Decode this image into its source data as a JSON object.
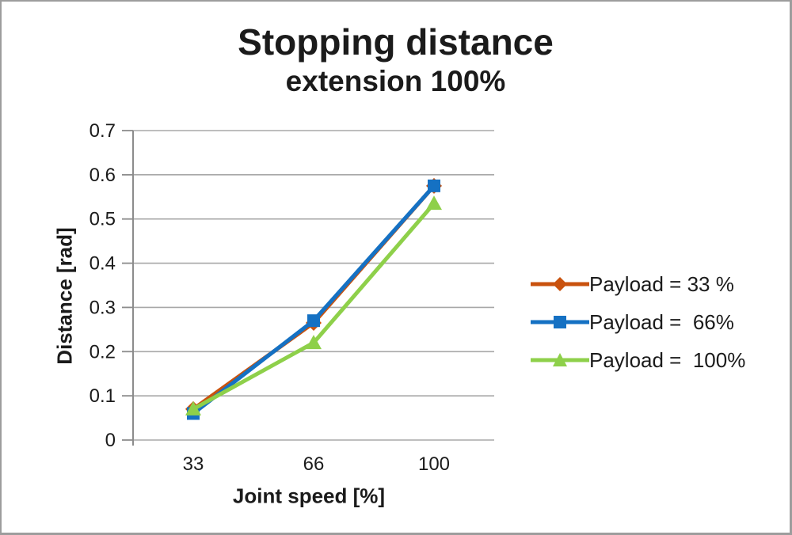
{
  "chart_data": {
    "type": "line",
    "title": "Stopping distance",
    "subtitle": "extension 100%",
    "xlabel": "Joint speed [%]",
    "ylabel": "Distance [rad]",
    "categories": [
      "33",
      "66",
      "100"
    ],
    "series": [
      {
        "name": "Payload = 33 %",
        "color": "#c9520e",
        "marker": "diamond",
        "values": [
          0.07,
          0.265,
          0.575
        ]
      },
      {
        "name": "Payload =  66%",
        "color": "#1571c3",
        "marker": "square",
        "values": [
          0.06,
          0.27,
          0.575
        ]
      },
      {
        "name": "Payload =  100%",
        "color": "#8ed04a",
        "marker": "triangle",
        "values": [
          0.07,
          0.22,
          0.535
        ]
      }
    ],
    "ylim": [
      0,
      0.7
    ],
    "ytick_step": 0.1,
    "ytick_labels": [
      "0",
      "0.1",
      "0.2",
      "0.3",
      "0.4",
      "0.5",
      "0.6",
      "0.7"
    ],
    "grid": true,
    "legend_position": "right",
    "colors": {
      "gridline": "#a8a8a8",
      "axis_line": "#8c8c8c",
      "text": "#1b1b1b",
      "background": "#ffffff",
      "frame_border": "#9d9d9d"
    }
  }
}
